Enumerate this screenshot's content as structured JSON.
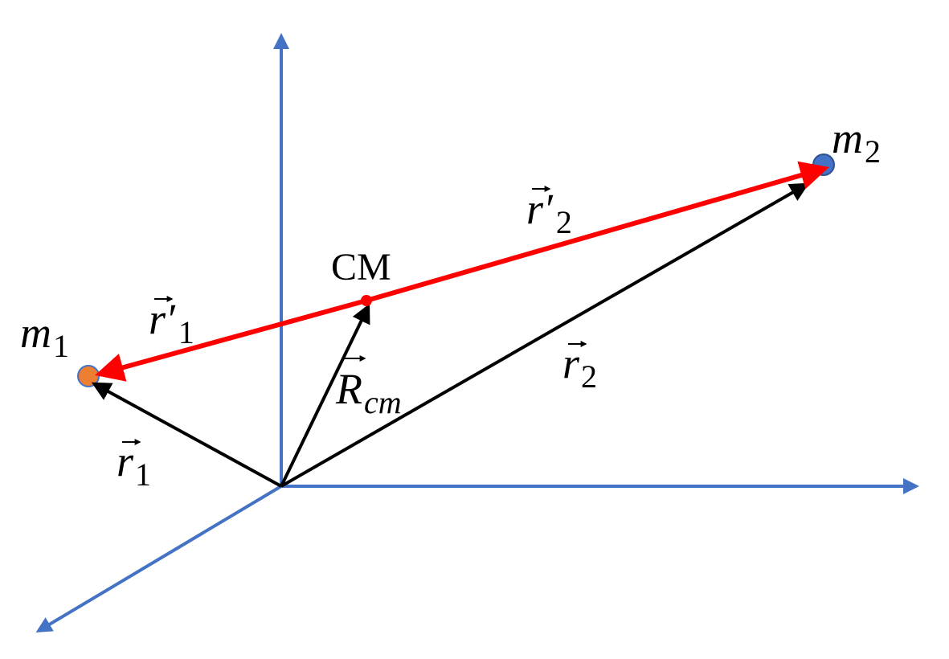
{
  "masses": [
    {
      "symbol": "m",
      "sub": "1"
    },
    {
      "symbol": "m",
      "sub": "2"
    }
  ],
  "center": {
    "label": "CM"
  },
  "vectors": [
    {
      "symbol": "r′",
      "sub": "1"
    },
    {
      "symbol": "r′",
      "sub": "2"
    },
    {
      "symbol": "r",
      "sub": "1"
    },
    {
      "symbol": "r",
      "sub": "2"
    },
    {
      "symbol": "R",
      "sub": "cm"
    }
  ]
}
